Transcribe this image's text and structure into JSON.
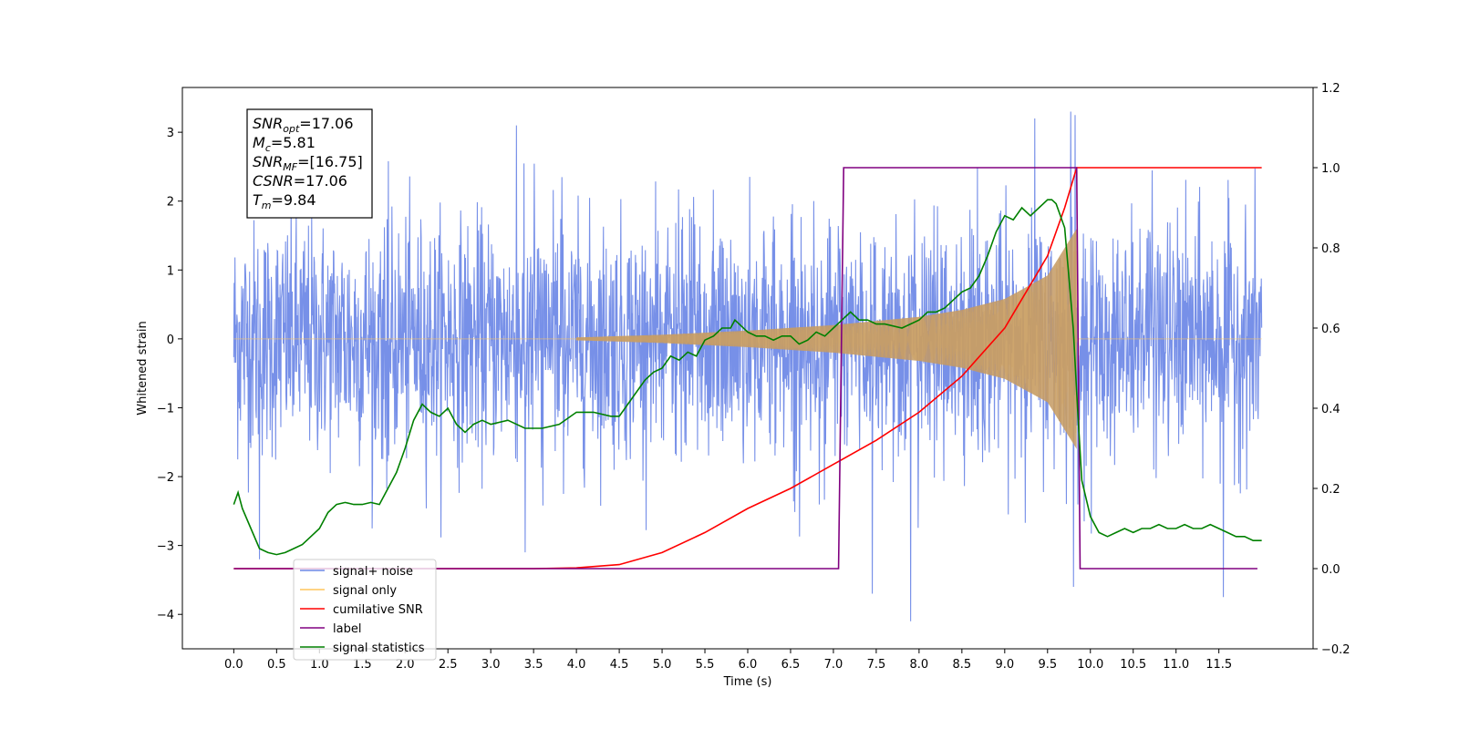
{
  "chart_data": {
    "type": "line",
    "xlabel": "Time (s)",
    "ylabel": "Whitened strain",
    "xlim": [
      -0.6,
      12.6
    ],
    "ylim": [
      -4.5,
      3.65
    ],
    "y2lim": [
      -0.2,
      1.2
    ],
    "x_ticks": [
      0.0,
      0.5,
      1.0,
      1.5,
      2.0,
      2.5,
      3.0,
      3.5,
      4.0,
      4.5,
      5.0,
      5.5,
      6.0,
      6.5,
      7.0,
      7.5,
      8.0,
      8.5,
      9.0,
      9.5,
      10.0,
      10.5,
      11.0,
      11.5
    ],
    "x_tick_labels": [
      "0.0",
      "0.5",
      "1.0",
      "1.5",
      "2.0",
      "2.5",
      "3.0",
      "3.5",
      "4.0",
      "4.5",
      "5.0",
      "5.5",
      "6.0",
      "6.5",
      "7.0",
      "7.5",
      "8.0",
      "8.5",
      "9.0",
      "9.5",
      "10.0",
      "10.5",
      "11.0",
      "11.5"
    ],
    "y_ticks": [
      -4,
      -3,
      -2,
      -1,
      0,
      1,
      2,
      3
    ],
    "y_tick_labels": [
      "−4",
      "−3",
      "−2",
      "−1",
      "0",
      "1",
      "2",
      "3"
    ],
    "y2_ticks": [
      -0.2,
      0.0,
      0.2,
      0.4,
      0.6,
      0.8,
      1.0,
      1.2
    ],
    "y2_tick_labels": [
      "−0.2",
      "0.0",
      "0.2",
      "0.4",
      "0.6",
      "0.8",
      "1.0",
      "1.2"
    ],
    "grid": false,
    "legend_position": "lower-left",
    "legend": [
      {
        "label": "signal+ noise",
        "color": "#6b87e6"
      },
      {
        "label": "signal only",
        "color": "#ffc65c"
      },
      {
        "label": "cumilative SNR",
        "color": "#ff0000"
      },
      {
        "label": "label",
        "color": "#800080"
      },
      {
        "label": "signal statistics",
        "color": "#008000"
      }
    ],
    "annotation": [
      {
        "sym": "SNR",
        "sub": "opt",
        "value": "=17.06"
      },
      {
        "sym": "M",
        "sub": "c",
        "value": "=5.81"
      },
      {
        "sym": "SNR",
        "sub": "MF",
        "value": "=[16.75]"
      },
      {
        "sym": "CSNR",
        "sub": "",
        "value": "=17.06"
      },
      {
        "sym": "T",
        "sub": "m",
        "value": "=9.84"
      }
    ],
    "series": [
      {
        "name": "signal+ noise",
        "axis": "left",
        "color": "#6b87e6",
        "x_range": [
          0.0,
          12.0
        ],
        "noise_std": 0.85,
        "envelope_max_pos": 3.3,
        "envelope_min_neg": -4.1,
        "outliers": [
          {
            "x": 7.45,
            "y": -3.7
          },
          {
            "x": 7.9,
            "y": -4.1
          },
          {
            "x": 9.35,
            "y": 3.2
          },
          {
            "x": 9.77,
            "y": 3.3
          },
          {
            "x": 9.82,
            "y": 3.25
          },
          {
            "x": 9.8,
            "y": -3.6
          },
          {
            "x": 11.55,
            "y": -3.75
          },
          {
            "x": 0.3,
            "y": -3.2
          },
          {
            "x": 3.4,
            "y": -3.1
          },
          {
            "x": 3.3,
            "y": 3.1
          }
        ]
      },
      {
        "name": "signal only",
        "axis": "left",
        "color": "#ffc65c",
        "chirp_start": 4.0,
        "merger_time": 9.84,
        "amplitude": [
          [
            4.0,
            0.02
          ],
          [
            5.0,
            0.06
          ],
          [
            6.0,
            0.12
          ],
          [
            7.0,
            0.2
          ],
          [
            8.0,
            0.32
          ],
          [
            8.5,
            0.42
          ],
          [
            9.0,
            0.58
          ],
          [
            9.5,
            0.92
          ],
          [
            9.84,
            1.6
          ]
        ]
      },
      {
        "name": "cumilative SNR",
        "axis": "right",
        "color": "#ff0000",
        "x": [
          0.0,
          3.5,
          4.0,
          4.5,
          5.0,
          5.5,
          6.0,
          6.5,
          7.0,
          7.5,
          8.0,
          8.5,
          9.0,
          9.5,
          9.7,
          9.84,
          12.0
        ],
        "y": [
          0.0,
          0.0,
          0.002,
          0.01,
          0.04,
          0.09,
          0.15,
          0.2,
          0.26,
          0.32,
          0.39,
          0.48,
          0.6,
          0.78,
          0.9,
          1.0,
          1.0
        ]
      },
      {
        "name": "label",
        "axis": "right",
        "color": "#800080",
        "x": [
          0.0,
          7.06,
          7.12,
          9.84,
          9.88,
          11.95
        ],
        "y": [
          0.0,
          0.0,
          1.0,
          1.0,
          0.0,
          0.0
        ]
      },
      {
        "name": "signal statistics",
        "axis": "right",
        "color": "#008000",
        "x": [
          0.0,
          0.05,
          0.1,
          0.2,
          0.3,
          0.4,
          0.5,
          0.6,
          0.7,
          0.8,
          0.9,
          1.0,
          1.1,
          1.2,
          1.3,
          1.4,
          1.5,
          1.6,
          1.7,
          1.8,
          1.9,
          2.0,
          2.1,
          2.2,
          2.3,
          2.4,
          2.5,
          2.6,
          2.7,
          2.8,
          2.9,
          3.0,
          3.2,
          3.4,
          3.6,
          3.8,
          4.0,
          4.2,
          4.4,
          4.5,
          4.6,
          4.8,
          4.9,
          5.0,
          5.1,
          5.2,
          5.3,
          5.4,
          5.5,
          5.6,
          5.7,
          5.8,
          5.85,
          5.9,
          6.0,
          6.1,
          6.2,
          6.3,
          6.4,
          6.5,
          6.6,
          6.7,
          6.8,
          6.9,
          7.0,
          7.1,
          7.2,
          7.3,
          7.4,
          7.5,
          7.6,
          7.8,
          8.0,
          8.1,
          8.2,
          8.3,
          8.4,
          8.5,
          8.6,
          8.7,
          8.8,
          8.9,
          9.0,
          9.1,
          9.2,
          9.3,
          9.4,
          9.5,
          9.55,
          9.6,
          9.7,
          9.8,
          9.85,
          9.9,
          10.0,
          10.1,
          10.2,
          10.3,
          10.4,
          10.5,
          10.6,
          10.7,
          10.8,
          10.9,
          11.0,
          11.1,
          11.2,
          11.3,
          11.4,
          11.5,
          11.6,
          11.7,
          11.8,
          11.9,
          12.0
        ],
        "y": [
          0.16,
          0.19,
          0.15,
          0.1,
          0.05,
          0.04,
          0.035,
          0.04,
          0.05,
          0.06,
          0.08,
          0.1,
          0.14,
          0.16,
          0.165,
          0.16,
          0.16,
          0.165,
          0.16,
          0.2,
          0.24,
          0.3,
          0.37,
          0.41,
          0.39,
          0.38,
          0.4,
          0.36,
          0.34,
          0.36,
          0.37,
          0.36,
          0.37,
          0.35,
          0.35,
          0.36,
          0.39,
          0.39,
          0.38,
          0.38,
          0.41,
          0.47,
          0.49,
          0.5,
          0.53,
          0.52,
          0.54,
          0.53,
          0.57,
          0.58,
          0.6,
          0.6,
          0.62,
          0.61,
          0.59,
          0.58,
          0.58,
          0.57,
          0.58,
          0.58,
          0.56,
          0.57,
          0.59,
          0.58,
          0.6,
          0.62,
          0.64,
          0.62,
          0.62,
          0.61,
          0.61,
          0.6,
          0.62,
          0.64,
          0.64,
          0.65,
          0.67,
          0.69,
          0.7,
          0.73,
          0.78,
          0.84,
          0.88,
          0.87,
          0.9,
          0.88,
          0.9,
          0.92,
          0.92,
          0.91,
          0.85,
          0.6,
          0.4,
          0.22,
          0.13,
          0.09,
          0.08,
          0.09,
          0.1,
          0.09,
          0.1,
          0.1,
          0.11,
          0.1,
          0.1,
          0.11,
          0.1,
          0.1,
          0.11,
          0.1,
          0.09,
          0.08,
          0.08,
          0.07,
          0.07
        ]
      }
    ]
  }
}
